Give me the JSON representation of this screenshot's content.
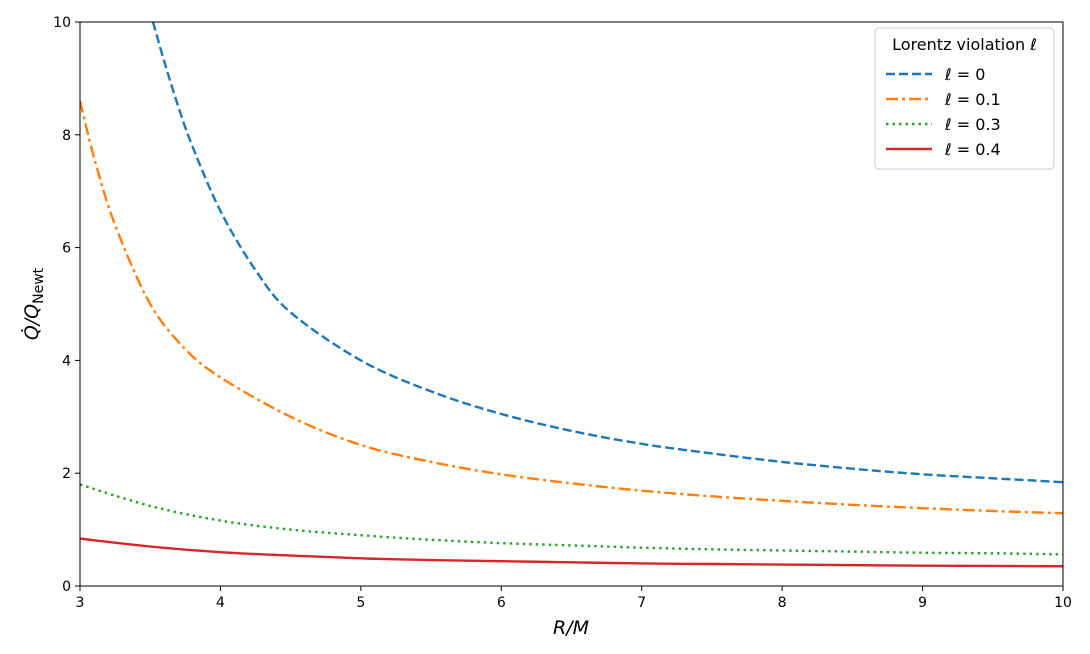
{
  "chart_data": {
    "type": "line",
    "xlabel": "R/M",
    "ylabel_main": "Q̇/Q",
    "ylabel_sub": "Newt",
    "xlim": [
      3,
      10
    ],
    "ylim": [
      0,
      10
    ],
    "xticks": [
      "3",
      "4",
      "5",
      "6",
      "7",
      "8",
      "9",
      "10"
    ],
    "yticks": [
      "0",
      "2",
      "4",
      "6",
      "8",
      "10"
    ],
    "grid": false,
    "legend": {
      "title": "Lorentz violation ℓ",
      "placement": "top-right"
    },
    "series": [
      {
        "name": "ℓ = 0",
        "color": "#1f77b4",
        "style": "dashed",
        "x": [
          3.52,
          3.6,
          3.7,
          3.8,
          4.0,
          4.25,
          4.5,
          5.0,
          5.5,
          6.0,
          6.5,
          7.0,
          7.5,
          8.0,
          8.5,
          9.0,
          9.5,
          10.0
        ],
        "y": [
          10.0,
          9.3,
          8.5,
          7.8,
          6.65,
          5.6,
          4.85,
          4.0,
          3.45,
          3.05,
          2.75,
          2.52,
          2.35,
          2.2,
          2.08,
          1.98,
          1.91,
          1.84
        ]
      },
      {
        "name": "ℓ = 0.1",
        "color": "#ff7f0e",
        "style": "dashdot",
        "x": [
          3.0,
          3.1,
          3.25,
          3.5,
          3.75,
          4.0,
          4.5,
          5.0,
          5.5,
          6.0,
          6.5,
          7.0,
          7.5,
          8.0,
          8.5,
          9.0,
          9.5,
          10.0
        ],
        "y": [
          8.6,
          7.6,
          6.4,
          5.0,
          4.2,
          3.7,
          3.0,
          2.5,
          2.2,
          1.98,
          1.82,
          1.69,
          1.59,
          1.51,
          1.44,
          1.38,
          1.33,
          1.29
        ]
      },
      {
        "name": "ℓ = 0.3",
        "color": "#2ca02c",
        "style": "dotted",
        "x": [
          3.0,
          3.5,
          4.0,
          4.5,
          5.0,
          5.5,
          6.0,
          6.5,
          7.0,
          7.5,
          8.0,
          8.5,
          9.0,
          9.5,
          10.0
        ],
        "y": [
          1.8,
          1.42,
          1.16,
          1.0,
          0.9,
          0.82,
          0.76,
          0.72,
          0.68,
          0.65,
          0.63,
          0.61,
          0.59,
          0.58,
          0.56
        ]
      },
      {
        "name": "ℓ = 0.4",
        "color": "#d62728",
        "style": "solid",
        "x": [
          3.0,
          3.5,
          4.0,
          4.5,
          5.0,
          5.5,
          6.0,
          6.5,
          7.0,
          7.5,
          8.0,
          8.5,
          9.0,
          9.5,
          10.0
        ],
        "y": [
          0.84,
          0.7,
          0.6,
          0.54,
          0.49,
          0.46,
          0.44,
          0.42,
          0.4,
          0.39,
          0.38,
          0.37,
          0.36,
          0.355,
          0.35
        ]
      }
    ]
  }
}
